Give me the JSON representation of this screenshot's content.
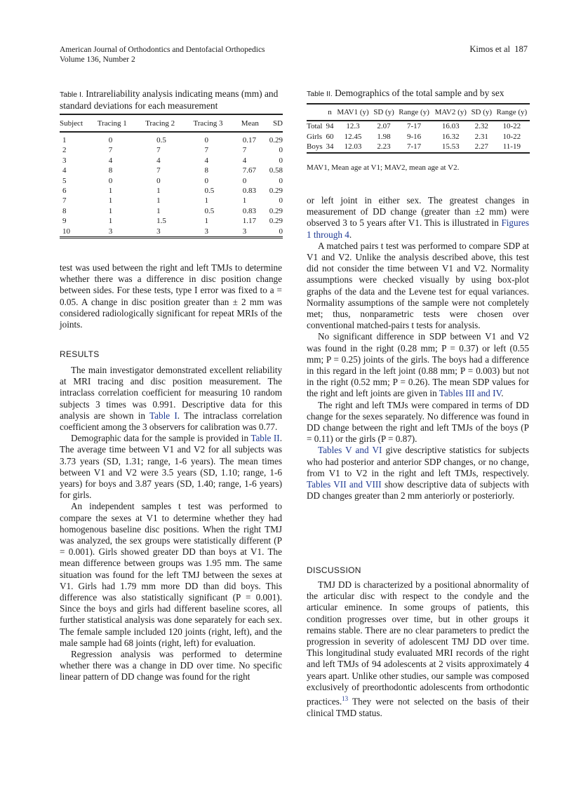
{
  "header": {
    "journal": "American Journal of Orthodontics and Dentofacial Orthopedics",
    "volume": "Volume 136, Number 2",
    "running": "Kimos et al",
    "page": "187"
  },
  "table1": {
    "label": "Table I.",
    "title": "Intrareliability analysis indicating means (mm) and standard deviations for each measurement",
    "columns": [
      "Subject",
      "Tracing 1",
      "Tracing 2",
      "Tracing 3",
      "Mean",
      "SD"
    ],
    "rows": [
      [
        "1",
        "0",
        "0.5",
        "0",
        "0.17",
        "0.29"
      ],
      [
        "2",
        "7",
        "7",
        "7",
        "7",
        "0"
      ],
      [
        "3",
        "4",
        "4",
        "4",
        "4",
        "0"
      ],
      [
        "4",
        "8",
        "7",
        "8",
        "7.67",
        "0.58"
      ],
      [
        "5",
        "0",
        "0",
        "0",
        "0",
        "0"
      ],
      [
        "6",
        "1",
        "1",
        "0.5",
        "0.83",
        "0.29"
      ],
      [
        "7",
        "1",
        "1",
        "1",
        "1",
        "0"
      ],
      [
        "8",
        "1",
        "1",
        "0.5",
        "0.83",
        "0.29"
      ],
      [
        "9",
        "1",
        "1.5",
        "1",
        "1.17",
        "0.29"
      ],
      [
        "10",
        "3",
        "3",
        "3",
        "3",
        "0"
      ]
    ]
  },
  "table2": {
    "label": "Table II.",
    "title": "Demographics of the total sample and by sex",
    "columns": [
      "",
      "n",
      "MAV1 (y)",
      "SD (y)",
      "Range (y)",
      "MAV2 (y)",
      "SD (y)",
      "Range (y)"
    ],
    "rows": [
      [
        "Total",
        "94",
        "12.3",
        "2.07",
        "7-17",
        "16.03",
        "2.32",
        "10-22"
      ],
      [
        "Girls",
        "60",
        "12.45",
        "1.98",
        "9-16",
        "16.32",
        "2.31",
        "10-22"
      ],
      [
        "Boys",
        "34",
        "12.03",
        "2.23",
        "7-17",
        "15.53",
        "2.27",
        "11-19"
      ]
    ],
    "note": "MAV1, Mean age at V1; MAV2, mean age at V2."
  },
  "sections": {
    "results": "RESULTS",
    "discussion": "DISCUSSION"
  },
  "left_top": [
    [
      {
        "t": "test was used between the right and left TMJs to determine whether there was a difference in disc position change between sides. For these tests, type I error was fixed to a = 0.05. A change in disc position greater than ± 2 mm was considered radiologically significant for repeat MRIs of the joints."
      }
    ]
  ],
  "left_results": [
    [
      {
        "t": "The main investigator demonstrated excellent reliability at MRI tracing and disc position measurement. The intraclass correlation coefficient for measuring 10 random subjects 3 times was 0.991. Descriptive data for this analysis are shown in "
      },
      {
        "t": "Table I",
        "link": true
      },
      {
        "t": ". The intraclass correlation coefficient among the 3 observers for calibration was 0.77."
      }
    ],
    [
      {
        "t": "Demographic data for the sample is provided in "
      },
      {
        "t": "Table II",
        "link": true
      },
      {
        "t": ". The average time between V1 and V2 for all subjects was 3.73 years (SD, 1.31; range, 1-6 years). The mean times between V1 and V2 were 3.5 years (SD, 1.10; range, 1-6 years) for boys and 3.87 years (SD, 1.40; range, 1-6 years) for girls."
      }
    ],
    [
      {
        "t": "An independent samples t test was performed to compare the sexes at V1 to determine whether they had homogenous baseline disc positions. When the right TMJ was analyzed, the sex groups were statistically different (P = 0.001). Girls showed greater DD than boys at V1. The mean difference between groups was 1.95 mm. The same situation was found for the left TMJ between the sexes at V1. Girls had 1.79 mm more DD than did boys. This difference was also statistically significant (P = 0.001). Since the boys and girls had different baseline scores, all further statistical analysis was done separately for each sex. The female sample included 120 joints (right, left), and the male sample had 68 joints (right, left) for evaluation."
      }
    ],
    [
      {
        "t": "Regression analysis was performed to determine whether there was a change in DD over time. No specific linear pattern of DD change was found for the right"
      }
    ]
  ],
  "right_top": [
    [
      {
        "t": "or left joint in either sex. The greatest changes in measurement of DD change (greater than ±2 mm) were observed 3 to 5 years after V1. This is illustrated in "
      },
      {
        "t": "Figures 1 through 4",
        "link": true
      },
      {
        "t": "."
      }
    ],
    [
      {
        "t": "A matched pairs t test was performed to compare SDP at V1 and V2. Unlike the analysis described above, this test did not consider the time between V1 and V2. Normality assumptions were checked visually by using box-plot graphs of the data and the Levene test for equal variances. Normality assumptions of the sample were not completely met; thus, nonparametric tests were chosen over conventional matched-pairs t tests for analysis."
      }
    ],
    [
      {
        "t": "No significant difference in SDP between V1 and V2 was found in the right (0.28 mm; P = 0.37) or left (0.55 mm; P = 0.25) joints of the girls. The boys had a difference in this regard in the left joint (0.88 mm; P = 0.003) but not in the right (0.52 mm; P = 0.26). The mean SDP values for the right and left joints are given in "
      },
      {
        "t": "Tables III and IV",
        "link": true
      },
      {
        "t": "."
      }
    ],
    [
      {
        "t": "The right and left TMJs were compared in terms of DD change for the sexes separately. No difference was found in DD change between the right and left TMJs of the boys (P = 0.11) or the girls (P = 0.87)."
      }
    ],
    [
      {
        "t": "Tables V and VI",
        "link": true
      },
      {
        "t": " give descriptive statistics for subjects who had posterior and anterior SDP changes, or no change, from V1 to V2 in the right and left TMJs, respectively. "
      },
      {
        "t": "Tables VII and VIII",
        "link": true
      },
      {
        "t": " show descriptive data of subjects with DD changes greater than 2 mm anteriorly or posteriorly."
      }
    ]
  ],
  "right_discussion": [
    [
      {
        "t": "TMJ DD is characterized by a positional abnormality of the articular disc with respect to the condyle and the articular eminence. In some groups of patients, this condition progresses over time, but in other groups it remains stable. There are no clear parameters to predict the progression in severity of adolescent TMJ DD over time. This longitudinal study evaluated MRI records of the right and left TMJs of 94 adolescents at 2 visits approximately 4 years apart. Unlike other studies, our sample was composed exclusively of preorthodontic adolescents from orthodontic practices."
      },
      {
        "t": "13",
        "sup": true
      },
      {
        "t": " They were not selected on the basis of their clinical TMD status."
      }
    ]
  ],
  "colors": {
    "link": "#1f3a93",
    "text": "#1a1a1a"
  }
}
